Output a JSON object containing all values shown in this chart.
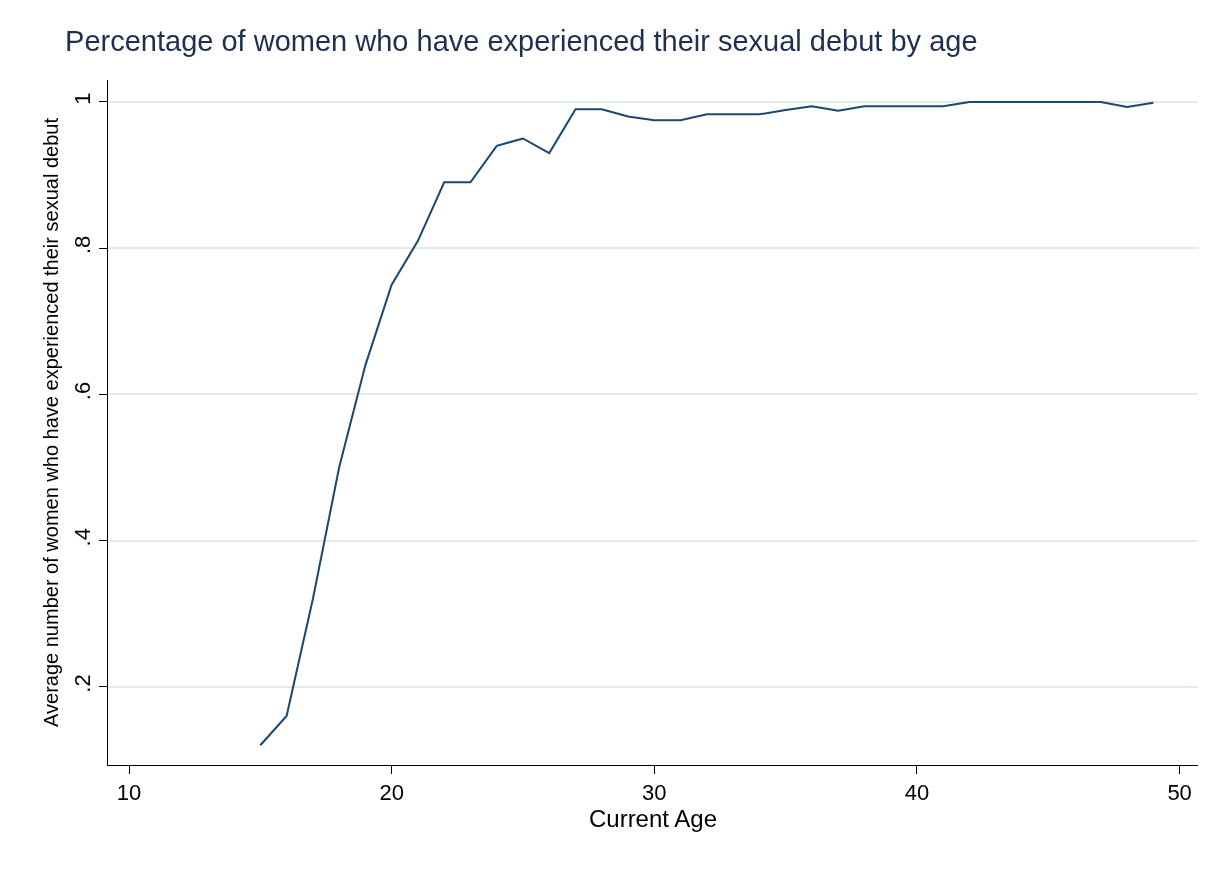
{
  "chart_data": {
    "type": "line",
    "title": "Percentage of women who have experienced their sexual debut by age",
    "xlabel": "Current Age",
    "ylabel": "Average number of women who have experienced their sexual debut",
    "x": [
      15,
      16,
      17,
      18,
      19,
      20,
      21,
      22,
      23,
      24,
      25,
      26,
      27,
      28,
      29,
      30,
      31,
      32,
      33,
      34,
      35,
      36,
      37,
      38,
      39,
      40,
      41,
      42,
      43,
      44,
      45,
      46,
      47,
      48,
      49
    ],
    "series": [
      {
        "color": "#1a476f",
        "values": [
          0.12,
          0.16,
          0.32,
          0.5,
          0.64,
          0.75,
          0.81,
          0.89,
          0.89,
          0.94,
          0.95,
          0.93,
          0.99,
          0.99,
          0.98,
          0.975,
          0.975,
          0.983,
          0.983,
          0.983,
          0.989,
          0.994,
          0.988,
          0.994,
          0.994,
          0.994,
          0.994,
          1,
          1,
          1,
          1,
          1,
          1,
          0.993,
          0.999
        ]
      }
    ],
    "xlim": [
      9.2,
      50.7
    ],
    "xticks": [
      10,
      20,
      30,
      40,
      50
    ],
    "ylim": [
      0.093,
      1.03
    ],
    "yticks": [
      {
        "value": 0.2,
        "label": ".2"
      },
      {
        "value": 0.4,
        "label": ".4"
      },
      {
        "value": 0.6,
        "label": ".6"
      },
      {
        "value": 0.8,
        "label": ".8"
      },
      {
        "value": 1,
        "label": "1"
      }
    ],
    "grid": "y",
    "marker": "none",
    "line_style": "solid"
  }
}
